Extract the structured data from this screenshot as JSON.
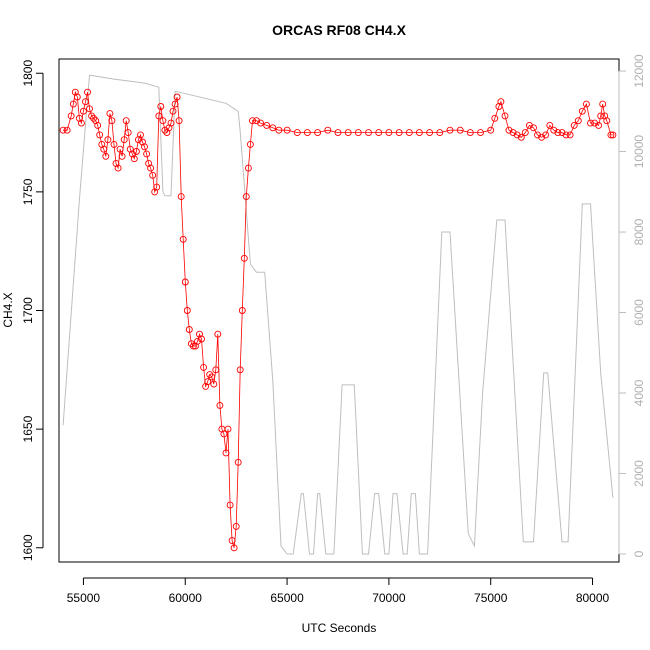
{
  "chart_data": {
    "type": "scatter",
    "title": "ORCAS RF08 CH4.X",
    "xlabel": "UTC Seconds",
    "ylabel": "CH4.X",
    "xlim": [
      53800,
      81300
    ],
    "ylim": [
      1594,
      1806
    ],
    "y2lim": [
      -200,
      12300
    ],
    "grid": false,
    "x_ticks": [
      55000,
      60000,
      65000,
      70000,
      75000,
      80000
    ],
    "y_ticks": [
      1600,
      1650,
      1700,
      1750,
      1800
    ],
    "y2_ticks": [
      0,
      2000,
      4000,
      6000,
      8000,
      10000,
      12000
    ],
    "colors": {
      "ch4": "#ff0000",
      "altitude": "#bebebe",
      "axis": "#000000"
    },
    "series": [
      {
        "style": "points-line",
        "points": [
          [
            54000,
            1776
          ],
          [
            54200,
            1776
          ],
          [
            54400,
            1782
          ],
          [
            54500,
            1787
          ],
          [
            54600,
            1792
          ],
          [
            54700,
            1790
          ],
          [
            54800,
            1781
          ],
          [
            54900,
            1779
          ],
          [
            55000,
            1784
          ],
          [
            55100,
            1788
          ],
          [
            55200,
            1792
          ],
          [
            55300,
            1785
          ],
          [
            55400,
            1782
          ],
          [
            55500,
            1781
          ],
          [
            55600,
            1780
          ],
          [
            55700,
            1778
          ],
          [
            55800,
            1774
          ],
          [
            55900,
            1770
          ],
          [
            56000,
            1768
          ],
          [
            56100,
            1765
          ],
          [
            56200,
            1772
          ],
          [
            56300,
            1783
          ],
          [
            56400,
            1780
          ],
          [
            56500,
            1770
          ],
          [
            56600,
            1762
          ],
          [
            56700,
            1760
          ],
          [
            56800,
            1768
          ],
          [
            56900,
            1765
          ],
          [
            57000,
            1772
          ],
          [
            57100,
            1780
          ],
          [
            57200,
            1775
          ],
          [
            57300,
            1768
          ],
          [
            57400,
            1766
          ],
          [
            57500,
            1764
          ],
          [
            57600,
            1767
          ],
          [
            57700,
            1772
          ],
          [
            57800,
            1774
          ],
          [
            57900,
            1771
          ],
          [
            58000,
            1769
          ],
          [
            58100,
            1766
          ],
          [
            58200,
            1762
          ],
          [
            58300,
            1760
          ],
          [
            58400,
            1757
          ],
          [
            58500,
            1750
          ],
          [
            58600,
            1752
          ],
          [
            58700,
            1782
          ],
          [
            58800,
            1786
          ],
          [
            58900,
            1780
          ],
          [
            59000,
            1776
          ],
          [
            59100,
            1775
          ],
          [
            59200,
            1777
          ],
          [
            59300,
            1779
          ],
          [
            59400,
            1784
          ],
          [
            59500,
            1787
          ],
          [
            59600,
            1790
          ],
          [
            59700,
            1780
          ],
          [
            59800,
            1748
          ],
          [
            59900,
            1730
          ],
          [
            60000,
            1712
          ],
          [
            60100,
            1700
          ],
          [
            60200,
            1692
          ],
          [
            60300,
            1686
          ],
          [
            60400,
            1685
          ],
          [
            60500,
            1685
          ],
          [
            60600,
            1687
          ],
          [
            60700,
            1690
          ],
          [
            60800,
            1688
          ],
          [
            60900,
            1676
          ],
          [
            61000,
            1668
          ],
          [
            61100,
            1670
          ],
          [
            61200,
            1673
          ],
          [
            61300,
            1672
          ],
          [
            61400,
            1669
          ],
          [
            61500,
            1675
          ],
          [
            61600,
            1690
          ],
          [
            61700,
            1660
          ],
          [
            61800,
            1650
          ],
          [
            61900,
            1648
          ],
          [
            62000,
            1640
          ],
          [
            62100,
            1650
          ],
          [
            62200,
            1618
          ],
          [
            62300,
            1603
          ],
          [
            62400,
            1600
          ],
          [
            62500,
            1609
          ],
          [
            62600,
            1636
          ],
          [
            62700,
            1675
          ],
          [
            62800,
            1700
          ],
          [
            62900,
            1722
          ],
          [
            63000,
            1748
          ],
          [
            63100,
            1760
          ],
          [
            63200,
            1770
          ],
          [
            63300,
            1780
          ],
          [
            63500,
            1780
          ],
          [
            63700,
            1779
          ],
          [
            64000,
            1778
          ],
          [
            64300,
            1777
          ],
          [
            64600,
            1776
          ],
          [
            65000,
            1776
          ],
          [
            65500,
            1775
          ],
          [
            66000,
            1775
          ],
          [
            66500,
            1775
          ],
          [
            67000,
            1776
          ],
          [
            67500,
            1775
          ],
          [
            68000,
            1775
          ],
          [
            68500,
            1775
          ],
          [
            69000,
            1775
          ],
          [
            69500,
            1775
          ],
          [
            70000,
            1775
          ],
          [
            70500,
            1775
          ],
          [
            71000,
            1775
          ],
          [
            71500,
            1775
          ],
          [
            72000,
            1775
          ],
          [
            72500,
            1775
          ],
          [
            73000,
            1776
          ],
          [
            73500,
            1776
          ],
          [
            74000,
            1775
          ],
          [
            74500,
            1775
          ],
          [
            75000,
            1776
          ],
          [
            75200,
            1781
          ],
          [
            75400,
            1786
          ],
          [
            75500,
            1788
          ],
          [
            75700,
            1782
          ],
          [
            75900,
            1776
          ],
          [
            76100,
            1775
          ],
          [
            76300,
            1774
          ],
          [
            76500,
            1773
          ],
          [
            76700,
            1775
          ],
          [
            76900,
            1778
          ],
          [
            77100,
            1777
          ],
          [
            77300,
            1774
          ],
          [
            77500,
            1773
          ],
          [
            77700,
            1774
          ],
          [
            77900,
            1778
          ],
          [
            78100,
            1776
          ],
          [
            78300,
            1775
          ],
          [
            78500,
            1775
          ],
          [
            78700,
            1774
          ],
          [
            78900,
            1774
          ],
          [
            79100,
            1778
          ],
          [
            79300,
            1780
          ],
          [
            79500,
            1784
          ],
          [
            79700,
            1787
          ],
          [
            79900,
            1779
          ],
          [
            80100,
            1779
          ],
          [
            80300,
            1778
          ],
          [
            80400,
            1782
          ],
          [
            80500,
            1787
          ],
          [
            80600,
            1782
          ],
          [
            80700,
            1780
          ],
          [
            80900,
            1774
          ],
          [
            81000,
            1774
          ]
        ]
      },
      {
        "style": "line",
        "axis": "right",
        "points": [
          [
            54000,
            3200
          ],
          [
            54800,
            8800
          ],
          [
            55300,
            11900
          ],
          [
            56500,
            11800
          ],
          [
            58000,
            11700
          ],
          [
            58700,
            11600
          ],
          [
            58900,
            9000
          ],
          [
            59000,
            8900
          ],
          [
            59300,
            8900
          ],
          [
            59500,
            11500
          ],
          [
            62000,
            11200
          ],
          [
            62600,
            11000
          ],
          [
            62700,
            10500
          ],
          [
            63200,
            7200
          ],
          [
            63500,
            7000
          ],
          [
            63900,
            7000
          ],
          [
            64300,
            4300
          ],
          [
            64700,
            200
          ],
          [
            65000,
            0
          ],
          [
            65300,
            0
          ],
          [
            65700,
            1500
          ],
          [
            65800,
            1500
          ],
          [
            66100,
            0
          ],
          [
            66300,
            0
          ],
          [
            66500,
            1500
          ],
          [
            66600,
            1500
          ],
          [
            66900,
            0
          ],
          [
            67300,
            0
          ],
          [
            67700,
            4200
          ],
          [
            68300,
            4200
          ],
          [
            68700,
            0
          ],
          [
            69000,
            0
          ],
          [
            69300,
            1500
          ],
          [
            69500,
            1500
          ],
          [
            69800,
            0
          ],
          [
            70000,
            0
          ],
          [
            70200,
            1500
          ],
          [
            70400,
            1500
          ],
          [
            70700,
            0
          ],
          [
            70900,
            0
          ],
          [
            71100,
            1500
          ],
          [
            71300,
            1500
          ],
          [
            71500,
            0
          ],
          [
            71900,
            0
          ],
          [
            72600,
            8000
          ],
          [
            73000,
            8000
          ],
          [
            73900,
            500
          ],
          [
            74200,
            200
          ],
          [
            74600,
            4000
          ],
          [
            75300,
            8300
          ],
          [
            75700,
            8300
          ],
          [
            76600,
            300
          ],
          [
            77100,
            300
          ],
          [
            77600,
            4500
          ],
          [
            77800,
            4500
          ],
          [
            78500,
            300
          ],
          [
            78800,
            300
          ],
          [
            79500,
            8700
          ],
          [
            79900,
            8700
          ],
          [
            80400,
            4500
          ],
          [
            81000,
            1400
          ]
        ]
      }
    ]
  }
}
